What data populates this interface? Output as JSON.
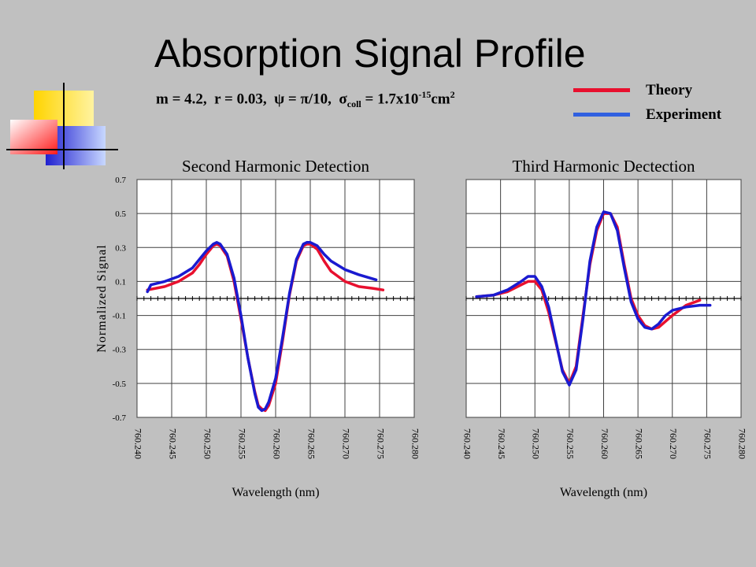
{
  "slide": {
    "title": "Absorption Signal Profile",
    "params": {
      "m": "m = 4.2,",
      "r": "r = 0.03,",
      "psi": "ψ = π/10,",
      "sigma_sym": "σ",
      "sigma_sub": "coll",
      "sigma_eq": "= 1.7x10",
      "sigma_exp": "-15",
      "unit": "cm",
      "unit_exp": "2"
    }
  },
  "legend": {
    "theory": {
      "label": "Theory",
      "color": "#e8102e"
    },
    "experiment": {
      "label": "Experiment",
      "color": "#3060e0"
    }
  },
  "colors": {
    "theory": "#e8102e",
    "experiment": "#1a1ad0",
    "grid": "#404040",
    "plot_bg": "#ffffff"
  },
  "chart_data": [
    {
      "type": "line",
      "title": "Second Harmonic Detection",
      "xlabel": "Wavelength (nm)",
      "ylabel": "Normalized Signal",
      "xlim": [
        760.24,
        760.28
      ],
      "ylim": [
        -0.7,
        0.7
      ],
      "x_ticks": [
        "760.240",
        "760.245",
        "760.250",
        "760.255",
        "760.260",
        "760.265",
        "760.270",
        "760.275",
        "760.280"
      ],
      "y_ticks": [
        "0.7",
        "0.5",
        "0.3",
        "0.1",
        "-0.1",
        "-0.3",
        "-0.5",
        "-0.7"
      ],
      "grid": true,
      "series": [
        {
          "name": "Theory",
          "x": [
            760.2415,
            760.244,
            760.246,
            760.248,
            760.249,
            760.25,
            760.251,
            760.2515,
            760.252,
            760.253,
            760.254,
            760.255,
            760.256,
            760.257,
            760.2575,
            760.258,
            760.2585,
            760.259,
            760.26,
            760.261,
            760.262,
            760.263,
            760.264,
            760.2645,
            760.265,
            760.266,
            760.267,
            760.268,
            760.27,
            760.272,
            760.274,
            760.2755
          ],
          "y": [
            0.05,
            0.07,
            0.1,
            0.15,
            0.2,
            0.26,
            0.31,
            0.32,
            0.31,
            0.25,
            0.1,
            -0.12,
            -0.35,
            -0.55,
            -0.63,
            -0.65,
            -0.66,
            -0.63,
            -0.5,
            -0.25,
            0.02,
            0.22,
            0.31,
            0.32,
            0.32,
            0.29,
            0.22,
            0.16,
            0.1,
            0.07,
            0.06,
            0.05
          ]
        },
        {
          "name": "Experiment",
          "x": [
            760.2415,
            760.242,
            760.244,
            760.246,
            760.248,
            760.249,
            760.25,
            760.251,
            760.2515,
            760.252,
            760.253,
            760.254,
            760.255,
            760.256,
            760.257,
            760.2575,
            760.258,
            760.2585,
            760.259,
            760.26,
            760.261,
            760.262,
            760.263,
            760.264,
            760.2645,
            760.265,
            760.266,
            760.267,
            760.268,
            760.27,
            760.272,
            760.2745
          ],
          "y": [
            0.04,
            0.08,
            0.1,
            0.13,
            0.18,
            0.23,
            0.28,
            0.32,
            0.33,
            0.32,
            0.26,
            0.12,
            -0.1,
            -0.35,
            -0.56,
            -0.64,
            -0.66,
            -0.65,
            -0.61,
            -0.47,
            -0.23,
            0.03,
            0.23,
            0.32,
            0.33,
            0.33,
            0.31,
            0.26,
            0.22,
            0.17,
            0.14,
            0.11
          ]
        }
      ]
    },
    {
      "type": "line",
      "title": "Third Harmonic Dectection",
      "xlabel": "Wavelength (nm)",
      "ylabel": "",
      "xlim": [
        760.24,
        760.28
      ],
      "ylim": [
        -0.7,
        0.7
      ],
      "x_ticks": [
        "760.240",
        "760.245",
        "760.250",
        "760.255",
        "760.260",
        "760.265",
        "760.270",
        "760.275",
        "760.280"
      ],
      "y_ticks": [],
      "grid": true,
      "series": [
        {
          "name": "Theory",
          "x": [
            760.2415,
            760.244,
            760.246,
            760.248,
            760.249,
            760.25,
            760.251,
            760.252,
            760.253,
            760.254,
            760.255,
            760.256,
            760.257,
            760.258,
            760.259,
            760.26,
            760.261,
            760.262,
            760.263,
            760.264,
            760.265,
            760.266,
            760.267,
            760.268,
            760.27,
            760.272,
            760.274
          ],
          "y": [
            0.01,
            0.02,
            0.04,
            0.08,
            0.1,
            0.1,
            0.05,
            -0.08,
            -0.25,
            -0.42,
            -0.5,
            -0.4,
            -0.1,
            0.2,
            0.4,
            0.5,
            0.5,
            0.42,
            0.2,
            0.0,
            -0.1,
            -0.16,
            -0.18,
            -0.17,
            -0.1,
            -0.04,
            -0.01
          ]
        },
        {
          "name": "Experiment",
          "x": [
            760.2415,
            760.244,
            760.246,
            760.248,
            760.249,
            760.25,
            760.251,
            760.252,
            760.253,
            760.254,
            760.255,
            760.256,
            760.257,
            760.258,
            760.259,
            760.26,
            760.261,
            760.262,
            760.263,
            760.264,
            760.265,
            760.266,
            760.267,
            760.268,
            760.269,
            760.27,
            760.272,
            760.274,
            760.2755
          ],
          "y": [
            0.01,
            0.02,
            0.05,
            0.1,
            0.13,
            0.13,
            0.07,
            -0.05,
            -0.24,
            -0.43,
            -0.51,
            -0.42,
            -0.12,
            0.22,
            0.42,
            0.51,
            0.5,
            0.4,
            0.18,
            -0.02,
            -0.12,
            -0.17,
            -0.18,
            -0.15,
            -0.1,
            -0.07,
            -0.05,
            -0.04,
            -0.04
          ]
        }
      ]
    }
  ]
}
